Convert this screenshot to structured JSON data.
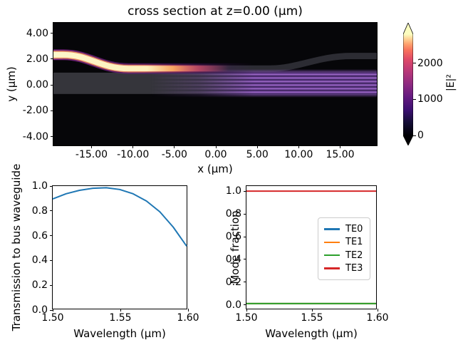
{
  "figure": {
    "kind": "matplotlib-figure",
    "background_color": "#ffffff"
  },
  "chart_data": [
    {
      "id": "field",
      "type": "heatmap",
      "title": "cross section at z=0.00 (μm)",
      "xlabel": "x (μm)",
      "ylabel": "y (μm)",
      "xlim": [
        -19.6,
        19.6
      ],
      "ylim": [
        -4.8,
        4.8
      ],
      "xticks": [
        -15,
        -10,
        -5,
        0,
        5,
        10,
        15
      ],
      "xtick_labels": [
        "-15.00",
        "-10.00",
        "-5.00",
        "0.00",
        "5.00",
        "10.00",
        "15.00"
      ],
      "yticks": [
        4,
        2,
        0,
        -2,
        -4
      ],
      "ytick_labels": [
        "4.00",
        "2.00",
        "0.00",
        "-2.00",
        "-4.00"
      ],
      "colormap": "magma",
      "background_color": "#060609",
      "colorbar": {
        "label": "|E|²",
        "ticks": [
          0,
          1000,
          2000
        ],
        "tick_labels": [
          "0",
          "1000",
          "2000"
        ],
        "scale_max": 2800,
        "extend": "both"
      },
      "structures": [
        {
          "name": "input-waveguide",
          "shape": "s-bend",
          "y_center_start": 2.3,
          "y_center_coupling": 1.25,
          "y_center_end": 2.2,
          "width": 0.5
        },
        {
          "name": "bus-waveguide",
          "shape": "slab",
          "y_top": 0.9,
          "y_bottom": -0.77
        }
      ],
      "description": "Bright |E|² field enters in the upper s-bend waveguide from the left, couples across near x=-10..0 and excites a striped higher-order mode pattern filling the multimode bus waveguide toward the right edge."
    },
    {
      "id": "transmission",
      "type": "line",
      "xlabel": "Wavelength (μm)",
      "ylabel": "Transmission to bus waveguide",
      "xlim": [
        1.5,
        1.6
      ],
      "ylim": [
        0.0,
        1.0
      ],
      "xticks": [
        1.5,
        1.55,
        1.6
      ],
      "xtick_labels": [
        "1.50",
        "1.55",
        "1.60"
      ],
      "yticks": [
        0.0,
        0.2,
        0.4,
        0.6,
        0.8,
        1.0
      ],
      "ytick_labels": [
        "0.0",
        "0.2",
        "0.4",
        "0.6",
        "0.8",
        "1.0"
      ],
      "series": [
        {
          "name": "transmission",
          "color": "#1f77b4",
          "x": [
            1.5,
            1.51,
            1.52,
            1.53,
            1.54,
            1.55,
            1.56,
            1.57,
            1.58,
            1.59,
            1.6
          ],
          "y": [
            0.895,
            0.937,
            0.965,
            0.982,
            0.986,
            0.972,
            0.937,
            0.878,
            0.79,
            0.665,
            0.51
          ]
        }
      ]
    },
    {
      "id": "mode",
      "type": "line",
      "xlabel": "Wavelength (μm)",
      "ylabel": "Mode fraction",
      "xlim": [
        1.5,
        1.6
      ],
      "ylim": [
        -0.045,
        1.045
      ],
      "xticks": [
        1.5,
        1.55,
        1.6
      ],
      "xtick_labels": [
        "1.50",
        "1.55",
        "1.60"
      ],
      "yticks": [
        0.0,
        0.2,
        0.4,
        0.6,
        0.8,
        1.0
      ],
      "ytick_labels": [
        "0.0",
        "0.2",
        "0.4",
        "0.6",
        "0.8",
        "1.0"
      ],
      "legend": {
        "show": true,
        "entries": [
          "TE0",
          "TE1",
          "TE2",
          "TE3"
        ]
      },
      "series": [
        {
          "name": "TE0",
          "color": "#1f77b4",
          "x": [
            1.5,
            1.6
          ],
          "y": [
            0.0,
            0.0
          ]
        },
        {
          "name": "TE1",
          "color": "#ff7f0e",
          "x": [
            1.5,
            1.6
          ],
          "y": [
            0.0,
            0.0
          ]
        },
        {
          "name": "TE2",
          "color": "#2ca02c",
          "x": [
            1.5,
            1.6
          ],
          "y": [
            0.0,
            0.0
          ]
        },
        {
          "name": "TE3",
          "color": "#d62728",
          "x": [
            1.5,
            1.6
          ],
          "y": [
            1.0,
            1.0
          ]
        }
      ]
    }
  ]
}
